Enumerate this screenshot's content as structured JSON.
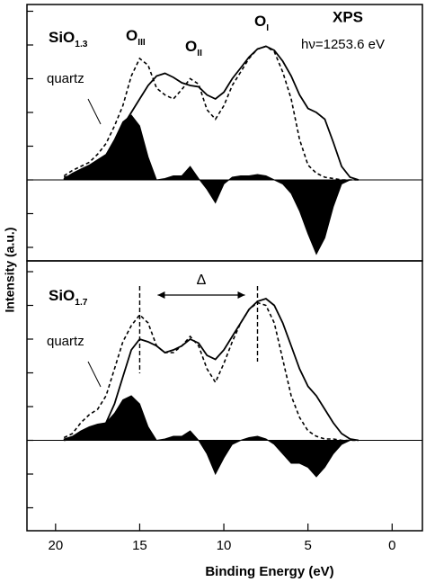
{
  "chart_data": {
    "type": "line",
    "xlabel": "Binding Energy (eV)",
    "ylabel": "Intensity (a.u.)",
    "xlim": [
      21.7,
      -1.8
    ],
    "xticks": [
      20,
      15,
      10,
      5,
      0
    ],
    "x": [
      19.5,
      19,
      18.5,
      18,
      17.5,
      17,
      16.5,
      16,
      15.5,
      15,
      14.5,
      14,
      13.5,
      13,
      12.5,
      12,
      11.5,
      11,
      10.5,
      10,
      9.5,
      9,
      8.5,
      8,
      7.5,
      7,
      6.5,
      6,
      5.5,
      5,
      4.5,
      4,
      3.5,
      3,
      2.5,
      2
    ],
    "panels": [
      {
        "ylim": [
          -0.6,
          1.3
        ],
        "yticks": [
          -0.5,
          -0.25,
          0,
          0.25,
          0.5,
          0.75,
          1,
          1.25
        ],
        "sample": {
          "text": "SiO",
          "sub": "1.3"
        },
        "peaks": [
          {
            "text": "O",
            "sub": "III"
          },
          {
            "text": "O",
            "sub": "II"
          },
          {
            "text": "O",
            "sub": "I"
          }
        ],
        "method": "XPS",
        "energy": "hν=1253.6 eV",
        "series": [
          {
            "style": "solid",
            "color": "#000000",
            "values": [
              0.02,
              0.03,
              0.05,
              0.08,
              0.1,
              0.13,
              0.23,
              0.4,
              0.5,
              0.6,
              0.7,
              0.77,
              0.79,
              0.76,
              0.72,
              0.7,
              0.69,
              0.63,
              0.6,
              0.65,
              0.75,
              0.83,
              0.91,
              0.97,
              0.99,
              0.96,
              0.88,
              0.77,
              0.63,
              0.53,
              0.5,
              0.45,
              0.28,
              0.1,
              0.02,
              0
            ]
          },
          {
            "name": "quartz",
            "style": "dashed",
            "color": "#000000",
            "values": [
              0.03,
              0.07,
              0.1,
              0.13,
              0.19,
              0.27,
              0.4,
              0.55,
              0.77,
              0.9,
              0.85,
              0.68,
              0.63,
              0.6,
              0.67,
              0.75,
              0.71,
              0.52,
              0.45,
              0.55,
              0.7,
              0.8,
              0.9,
              0.97,
              0.99,
              0.95,
              0.8,
              0.6,
              0.3,
              0.11,
              0.05,
              0.02,
              0.01,
              0,
              0,
              0
            ]
          },
          {
            "style": "filled",
            "color": "#000000",
            "values": [
              0.01,
              0.05,
              0.08,
              0.11,
              0.15,
              0.19,
              0.3,
              0.43,
              0.48,
              0.4,
              0.17,
              0,
              0.01,
              0.03,
              0.03,
              0.1,
              0.01,
              -0.07,
              -0.17,
              -0.03,
              0.02,
              0.03,
              0.03,
              0.04,
              0.03,
              0,
              -0.03,
              -0.1,
              -0.23,
              -0.4,
              -0.55,
              -0.43,
              -0.2,
              -0.03,
              0,
              0
            ]
          }
        ]
      },
      {
        "ylim": [
          -0.67,
          1.33
        ],
        "yticks": [
          -0.5,
          -0.25,
          0,
          0.25,
          0.5,
          0.75,
          1,
          1.25
        ],
        "sample": {
          "text": "SiO",
          "sub": "1.7"
        },
        "shift": {
          "label": "Δ",
          "from": 15,
          "to": 8
        },
        "series": [
          {
            "style": "solid",
            "color": "#000000",
            "values": [
              0,
              0.01,
              0.03,
              0.05,
              0.08,
              0.13,
              0.27,
              0.47,
              0.67,
              0.75,
              0.73,
              0.7,
              0.65,
              0.67,
              0.7,
              0.75,
              0.72,
              0.63,
              0.6,
              0.67,
              0.77,
              0.87,
              0.97,
              1.03,
              1.05,
              1.0,
              0.87,
              0.7,
              0.53,
              0.4,
              0.33,
              0.23,
              0.13,
              0.05,
              0.01,
              0
            ]
          },
          {
            "name": "quartz",
            "style": "dashed",
            "color": "#000000",
            "values": [
              0.02,
              0.05,
              0.13,
              0.19,
              0.23,
              0.33,
              0.53,
              0.73,
              0.85,
              0.93,
              0.87,
              0.7,
              0.65,
              0.65,
              0.7,
              0.77,
              0.7,
              0.53,
              0.43,
              0.57,
              0.73,
              0.87,
              0.97,
              1.02,
              1.0,
              0.87,
              0.6,
              0.33,
              0.17,
              0.07,
              0.03,
              0.01,
              0.01,
              0,
              0,
              0
            ]
          },
          {
            "style": "filled",
            "color": "#000000",
            "values": [
              0.01,
              0.03,
              0.07,
              0.1,
              0.12,
              0.13,
              0.2,
              0.3,
              0.33,
              0.27,
              0.1,
              0,
              0.01,
              0.03,
              0.03,
              0.07,
              0,
              -0.1,
              -0.25,
              -0.13,
              -0.03,
              0,
              0.02,
              0.03,
              0.01,
              -0.03,
              -0.1,
              -0.17,
              -0.17,
              -0.2,
              -0.27,
              -0.2,
              -0.1,
              -0.03,
              0,
              0
            ]
          }
        ]
      }
    ]
  }
}
